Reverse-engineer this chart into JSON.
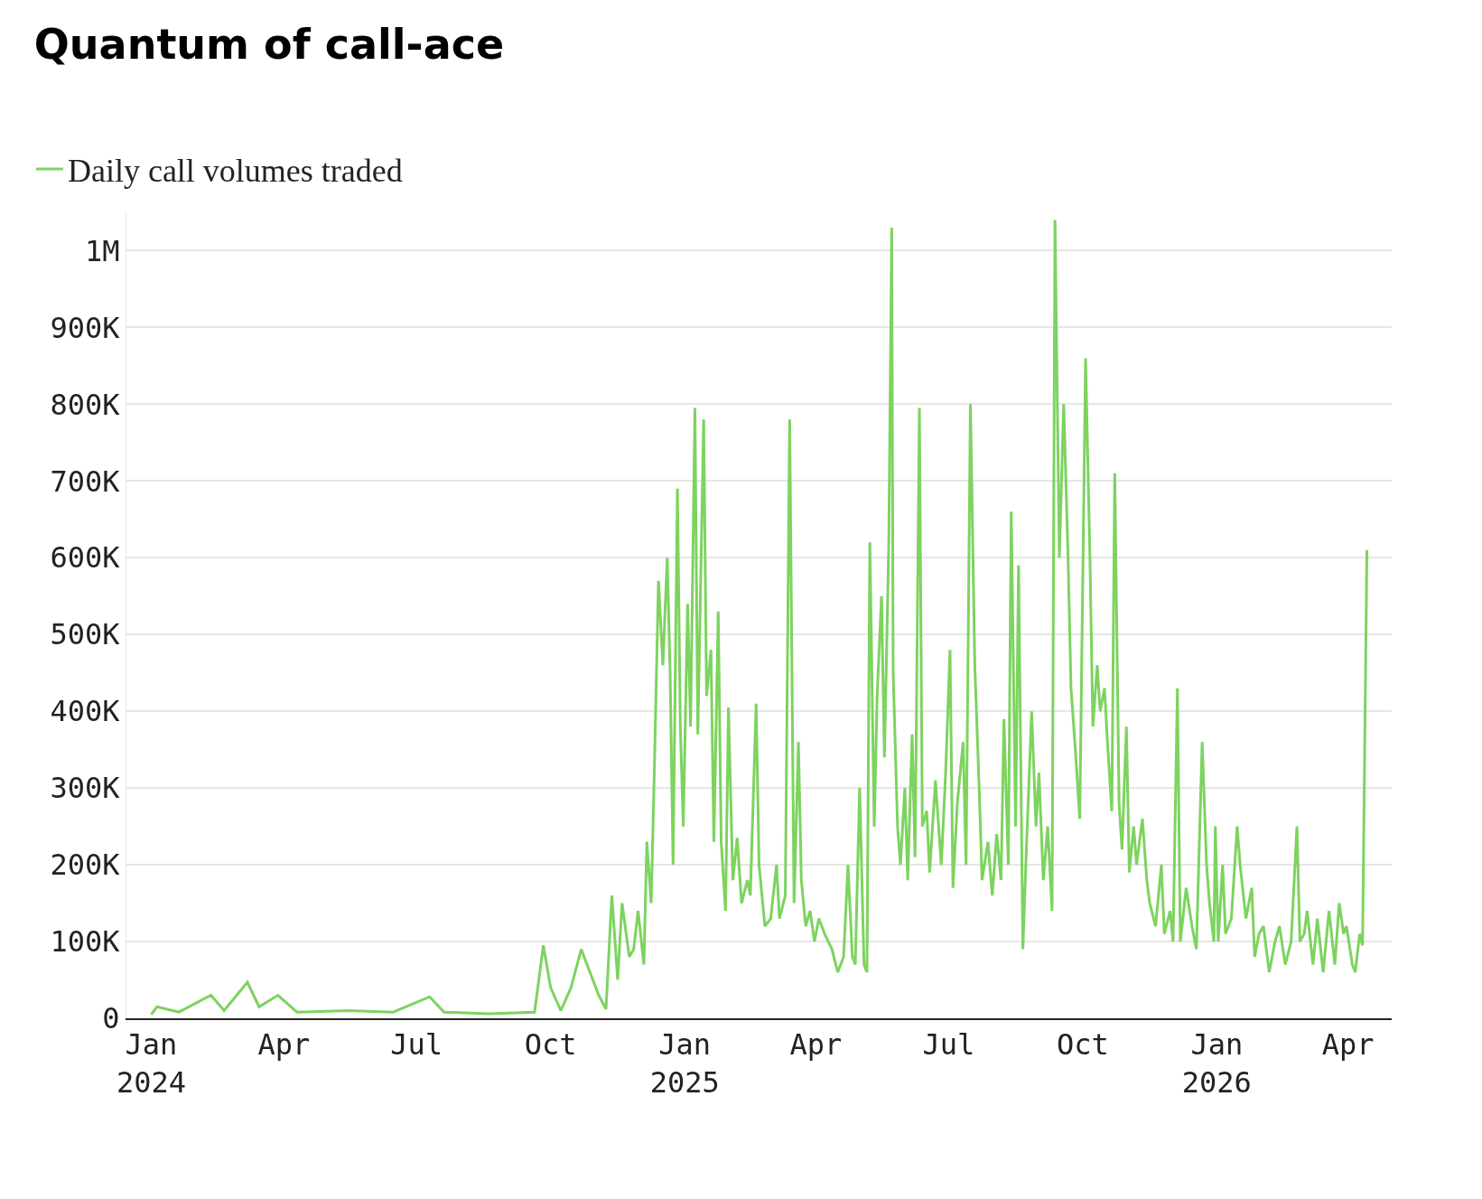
{
  "chart_data": {
    "type": "line",
    "title": "Quantum of call-ace",
    "x": [
      "2024-01-01",
      "2024-01-05",
      "2024-01-20",
      "2024-02-11",
      "2024-02-20",
      "2024-03-07",
      "2024-03-15",
      "2024-03-28",
      "2024-04-10",
      "2024-05-15",
      "2024-06-15",
      "2024-07-10",
      "2024-07-20",
      "2024-08-20",
      "2024-09-20",
      "2024-09-26",
      "2024-10-01",
      "2024-10-08",
      "2024-10-15",
      "2024-10-22",
      "2024-10-26",
      "2024-11-03",
      "2024-11-08",
      "2024-11-12",
      "2024-11-16",
      "2024-11-19",
      "2024-11-24",
      "2024-11-27",
      "2024-11-30",
      "2024-12-04",
      "2024-12-06",
      "2024-12-09",
      "2024-12-11",
      "2024-12-14",
      "2024-12-17",
      "2024-12-20",
      "2024-12-22",
      "2024-12-24",
      "2024-12-27",
      "2024-12-29",
      "2024-12-31",
      "2025-01-03",
      "2025-01-05",
      "2025-01-08",
      "2025-01-10",
      "2025-01-14",
      "2025-01-16",
      "2025-01-19",
      "2025-01-21",
      "2025-01-24",
      "2025-01-26",
      "2025-01-29",
      "2025-01-31",
      "2025-02-03",
      "2025-02-06",
      "2025-02-09",
      "2025-02-13",
      "2025-02-15",
      "2025-02-19",
      "2025-02-21",
      "2025-02-25",
      "2025-03-01",
      "2025-03-05",
      "2025-03-07",
      "2025-03-11",
      "2025-03-14",
      "2025-03-17",
      "2025-03-20",
      "2025-03-22",
      "2025-03-25",
      "2025-03-28",
      "2025-03-31",
      "2025-04-03",
      "2025-04-07",
      "2025-04-12",
      "2025-04-16",
      "2025-04-20",
      "2025-04-23",
      "2025-04-26",
      "2025-04-28",
      "2025-05-01",
      "2025-05-04",
      "2025-05-06",
      "2025-05-08",
      "2025-05-11",
      "2025-05-13",
      "2025-05-16",
      "2025-05-18",
      "2025-05-21",
      "2025-05-23",
      "2025-05-24",
      "2025-05-27",
      "2025-05-29",
      "2025-06-01",
      "2025-06-03",
      "2025-06-06",
      "2025-06-08",
      "2025-06-11",
      "2025-06-13",
      "2025-06-16",
      "2025-06-18",
      "2025-06-22",
      "2025-06-26",
      "2025-06-29",
      "2025-07-02",
      "2025-07-04",
      "2025-07-07",
      "2025-07-11",
      "2025-07-13",
      "2025-07-16",
      "2025-07-19",
      "2025-07-22",
      "2025-07-24",
      "2025-07-28",
      "2025-07-31",
      "2025-08-03",
      "2025-08-06",
      "2025-08-08",
      "2025-08-11",
      "2025-08-13",
      "2025-08-16",
      "2025-08-18",
      "2025-08-21",
      "2025-08-23",
      "2025-08-27",
      "2025-08-30",
      "2025-09-01",
      "2025-09-04",
      "2025-09-07",
      "2025-09-10",
      "2025-09-12",
      "2025-09-15",
      "2025-09-18",
      "2025-09-21",
      "2025-09-23",
      "2025-09-26",
      "2025-09-29",
      "2025-10-03",
      "2025-10-06",
      "2025-10-08",
      "2025-10-11",
      "2025-10-13",
      "2025-10-16",
      "2025-10-18",
      "2025-10-21",
      "2025-10-23",
      "2025-10-26",
      "2025-10-28",
      "2025-10-31",
      "2025-11-02",
      "2025-11-05",
      "2025-11-07",
      "2025-11-11",
      "2025-11-14",
      "2025-11-16",
      "2025-11-20",
      "2025-11-24",
      "2025-11-26",
      "2025-11-30",
      "2025-12-02",
      "2025-12-05",
      "2025-12-07",
      "2025-12-11",
      "2025-12-15",
      "2025-12-18",
      "2025-12-22",
      "2025-12-25",
      "2025-12-27",
      "2025-12-30",
      "2025-12-31",
      "2026-01-02",
      "2026-01-05",
      "2026-01-07",
      "2026-01-11",
      "2026-01-15",
      "2026-01-17",
      "2026-01-21",
      "2026-01-25",
      "2026-01-27",
      "2026-01-30",
      "2026-02-02",
      "2026-02-06",
      "2026-02-10",
      "2026-02-13",
      "2026-02-17",
      "2026-02-21",
      "2026-02-25",
      "2026-02-27",
      "2026-03-02",
      "2026-03-04",
      "2026-03-08",
      "2026-03-11",
      "2026-03-15",
      "2026-03-19",
      "2026-03-23",
      "2026-03-26",
      "2026-03-29",
      "2026-03-31",
      "2026-04-04",
      "2026-04-06",
      "2026-04-09",
      "2026-04-11",
      "2026-04-14"
    ],
    "series": [
      {
        "name": "Daily call volumes traded",
        "color": "#7dd35f",
        "values": [
          5000,
          15000,
          8000,
          30000,
          10000,
          47000,
          15000,
          30000,
          8000,
          10000,
          8000,
          28000,
          8000,
          6000,
          8000,
          95000,
          40000,
          10000,
          40000,
          90000,
          70000,
          30000,
          12000,
          160000,
          50000,
          150000,
          80000,
          90000,
          140000,
          70000,
          230000,
          150000,
          310000,
          570000,
          460000,
          600000,
          450000,
          200000,
          690000,
          380000,
          250000,
          540000,
          380000,
          795000,
          370000,
          780000,
          420000,
          480000,
          230000,
          530000,
          230000,
          140000,
          405000,
          180000,
          235000,
          150000,
          180000,
          160000,
          410000,
          200000,
          120000,
          130000,
          200000,
          130000,
          160000,
          780000,
          150000,
          360000,
          180000,
          120000,
          140000,
          100000,
          130000,
          110000,
          90000,
          60000,
          80000,
          200000,
          80000,
          70000,
          300000,
          70000,
          60000,
          620000,
          250000,
          420000,
          550000,
          340000,
          620000,
          1030000,
          450000,
          250000,
          200000,
          300000,
          180000,
          370000,
          210000,
          795000,
          250000,
          270000,
          190000,
          310000,
          200000,
          320000,
          480000,
          170000,
          280000,
          360000,
          200000,
          800000,
          460000,
          300000,
          180000,
          230000,
          160000,
          240000,
          180000,
          390000,
          200000,
          660000,
          250000,
          590000,
          90000,
          200000,
          400000,
          250000,
          320000,
          180000,
          250000,
          140000,
          1040000,
          600000,
          800000,
          600000,
          430000,
          350000,
          260000,
          860000,
          600000,
          380000,
          460000,
          400000,
          430000,
          360000,
          270000,
          710000,
          280000,
          220000,
          380000,
          190000,
          250000,
          200000,
          260000,
          180000,
          150000,
          120000,
          200000,
          110000,
          140000,
          100000,
          430000,
          100000,
          170000,
          120000,
          90000,
          360000,
          200000,
          150000,
          100000,
          250000,
          100000,
          200000,
          110000,
          130000,
          250000,
          200000,
          130000,
          170000,
          80000,
          110000,
          120000,
          60000,
          100000,
          120000,
          70000,
          100000,
          250000,
          100000,
          110000,
          140000,
          70000,
          130000,
          60000,
          140000,
          70000,
          150000,
          110000,
          120000,
          70000,
          60000,
          110000,
          95000,
          610000
        ]
      }
    ],
    "xlim": [
      "2023-12-15",
      "2026-05-01"
    ],
    "xticks": [
      {
        "value": "2024-01-01",
        "label": "Jan\n2024"
      },
      {
        "value": "2024-04-01",
        "label": "Apr"
      },
      {
        "value": "2024-07-01",
        "label": "Jul"
      },
      {
        "value": "2024-10-01",
        "label": "Oct"
      },
      {
        "value": "2025-01-01",
        "label": "Jan\n2025"
      },
      {
        "value": "2025-04-01",
        "label": "Apr"
      },
      {
        "value": "2025-07-01",
        "label": "Jul"
      },
      {
        "value": "2025-10-01",
        "label": "Oct"
      },
      {
        "value": "2026-01-01",
        "label": "Jan\n2026"
      },
      {
        "value": "2026-04-01",
        "label": "Apr"
      }
    ],
    "ylim": [
      0,
      1050000
    ],
    "yticks": [
      0,
      {
        "value": 100000,
        "label": "100K"
      },
      {
        "value": 200000,
        "label": "200K"
      },
      {
        "value": 300000,
        "label": "300K"
      },
      {
        "value": 400000,
        "label": "400K"
      },
      {
        "value": 500000,
        "label": "500K"
      },
      {
        "value": 600000,
        "label": "600K"
      },
      {
        "value": 700000,
        "label": "700K"
      },
      {
        "value": 800000,
        "label": "800K"
      },
      {
        "value": 900000,
        "label": "900K"
      },
      {
        "value": 1000000,
        "label": "1M"
      }
    ],
    "grid": "y",
    "legend": "top left",
    "marker": "none",
    "line_style": "solid"
  }
}
